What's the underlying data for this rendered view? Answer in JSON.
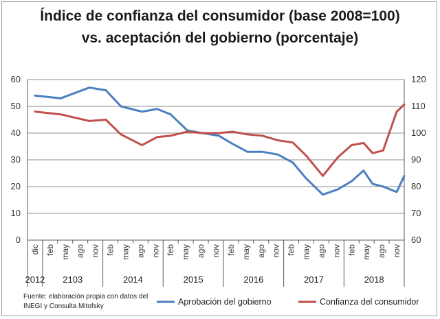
{
  "colors": {
    "approval": "#4a7fc0",
    "confidence": "#c0504d",
    "grid": "#8c8c8c",
    "axis": "#595959"
  },
  "chart_data": {
    "type": "line",
    "title_line1": "Índice de confianza del consumidor (base 2008=100)",
    "title_line2": "vs. aceptación del gobierno (porcentaje)",
    "left_axis": {
      "ylim": [
        0,
        60
      ],
      "ticks": [
        "0",
        "10",
        "20",
        "30",
        "40",
        "50",
        "60"
      ]
    },
    "right_axis": {
      "ylim": [
        60,
        120
      ],
      "ticks": [
        "60",
        "70",
        "80",
        "90",
        "100",
        "110",
        "120"
      ]
    },
    "grid": true,
    "legend_position": "bottom",
    "x_categories": [
      "dic",
      "feb",
      "may",
      "ago",
      "nov",
      "feb",
      "may",
      "ago",
      "nov",
      "feb",
      "may",
      "ago",
      "nov",
      "feb",
      "may",
      "ago",
      "nov",
      "feb",
      "may",
      "ago",
      "nov",
      "feb",
      "may",
      "ago",
      "nov"
    ],
    "year_labels": [
      "2012",
      "2103",
      "2014",
      "2015",
      "2016",
      "2017",
      "2018"
    ],
    "x": [
      0,
      1.7,
      3.6,
      4.7,
      5.7,
      7.1,
      8.1,
      9.0,
      10.1,
      11.1,
      12.2,
      13.1,
      14.1,
      15.1,
      16.1,
      17.1,
      18.0,
      19.1,
      20.1,
      21.0,
      21.8,
      22.4,
      23.1,
      24.0,
      24.5
    ],
    "series": [
      {
        "name": "Aprobación del gobierno",
        "axis": "left",
        "values": [
          54,
          53,
          57,
          56,
          50,
          48,
          49,
          47,
          41,
          40,
          39,
          36,
          33,
          33,
          32,
          29,
          23,
          17,
          19,
          22,
          26,
          21,
          20,
          18,
          24
        ]
      },
      {
        "name": "Confianza del consumidor",
        "axis": "right",
        "values": [
          108,
          107,
          104.5,
          105,
          99.5,
          95.5,
          98.5,
          99,
          100.5,
          100,
          100,
          100.5,
          99.5,
          99,
          97.3,
          96.5,
          91.5,
          84,
          91,
          95.5,
          96.3,
          92.5,
          93.5,
          108,
          110.7
        ]
      }
    ]
  },
  "source_line1": "Fuente: elaboración propia con datos del",
  "source_line2": "INEGI y Consulta Mitofsky"
}
